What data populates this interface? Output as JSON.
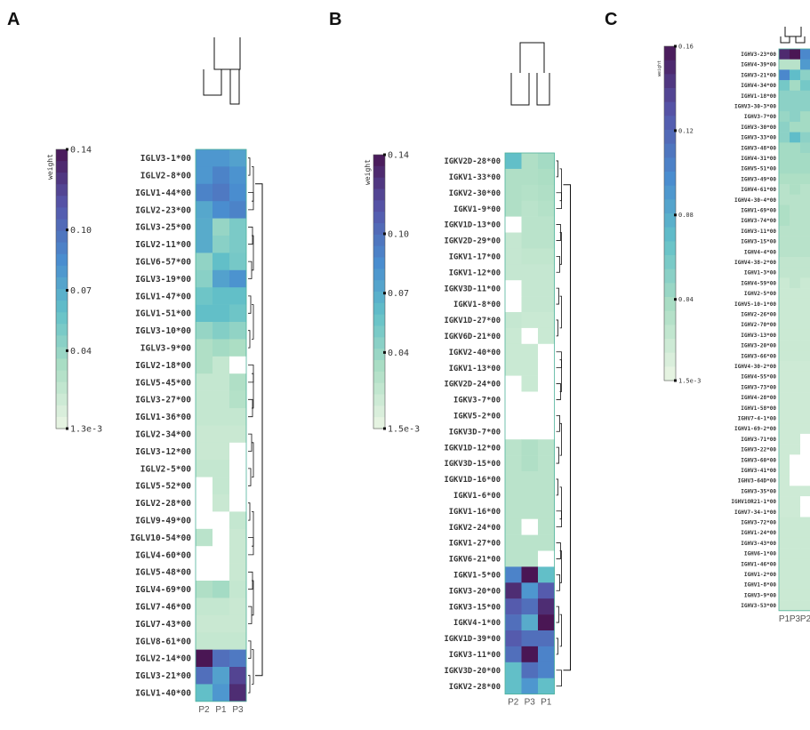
{
  "chart_data": [
    {
      "type": "heatmap",
      "panel_label": "A",
      "colorbar_title": "weight",
      "colorbar_ticks": [
        "0.14",
        "0.10",
        "0.07",
        "0.04",
        "1.3e-3"
      ],
      "colorbar_range": [
        0.0013,
        0.14
      ],
      "columns": [
        "P2",
        "P1",
        "P3"
      ],
      "rows": [
        "IGLV3-1*00",
        "IGLV2-8*00",
        "IGLV1-44*00",
        "IGLV2-23*00",
        "IGLV3-25*00",
        "IGLV2-11*00",
        "IGLV6-57*00",
        "IGLV3-19*00",
        "IGLV1-47*00",
        "IGLV1-51*00",
        "IGLV3-10*00",
        "IGLV3-9*00",
        "IGLV2-18*00",
        "IGLV5-45*00",
        "IGLV3-27*00",
        "IGLV1-36*00",
        "IGLV2-34*00",
        "IGLV3-12*00",
        "IGLV2-5*00",
        "IGLV5-52*00",
        "IGLV2-28*00",
        "IGLV9-49*00",
        "IGLV10-54*00",
        "IGLV4-60*00",
        "IGLV5-48*00",
        "IGLV4-69*00",
        "IGLV7-46*00",
        "IGLV7-43*00",
        "IGLV8-61*00",
        "IGLV2-14*00",
        "IGLV3-21*00",
        "IGLV1-40*00"
      ],
      "values": [
        [
          0.08,
          0.08,
          0.075
        ],
        [
          0.08,
          0.09,
          0.082
        ],
        [
          0.09,
          0.095,
          0.085
        ],
        [
          0.072,
          0.085,
          0.09
        ],
        [
          0.07,
          0.04,
          0.05
        ],
        [
          0.07,
          0.045,
          0.05
        ],
        [
          0.042,
          0.06,
          0.052
        ],
        [
          0.045,
          0.075,
          0.082
        ],
        [
          0.055,
          0.06,
          0.06
        ],
        [
          0.06,
          0.06,
          0.055
        ],
        [
          0.04,
          0.047,
          0.042
        ],
        [
          0.03,
          0.035,
          0.032
        ],
        [
          0.03,
          0.02,
          null
        ],
        [
          0.02,
          0.02,
          0.03
        ],
        [
          0.02,
          0.02,
          0.028
        ],
        [
          0.02,
          0.02,
          0.02
        ],
        [
          0.018,
          0.018,
          0.018
        ],
        [
          0.018,
          0.018,
          null
        ],
        [
          0.02,
          0.02,
          null
        ],
        [
          null,
          0.02,
          null
        ],
        [
          null,
          0.018,
          null
        ],
        [
          null,
          null,
          0.02
        ],
        [
          0.025,
          null,
          0.018
        ],
        [
          null,
          null,
          0.018
        ],
        [
          null,
          null,
          0.018
        ],
        [
          0.03,
          0.035,
          0.02
        ],
        [
          0.02,
          0.02,
          0.018
        ],
        [
          0.018,
          0.018,
          0.018
        ],
        [
          0.02,
          0.02,
          0.02
        ],
        [
          0.14,
          0.1,
          0.095
        ],
        [
          0.1,
          0.075,
          0.12
        ],
        [
          0.06,
          0.08,
          0.13
        ]
      ]
    },
    {
      "type": "heatmap",
      "panel_label": "B",
      "colorbar_title": "weight",
      "colorbar_ticks": [
        "0.14",
        "0.10",
        "0.07",
        "0.04",
        "1.5e-3"
      ],
      "colorbar_range": [
        0.0015,
        0.14
      ],
      "columns": [
        "P2",
        "P3",
        "P1"
      ],
      "rows": [
        "IGKV2D-28*00",
        "IGKV1-33*00",
        "IGKV2-30*00",
        "IGKV1-9*00",
        "IGKV1D-13*00",
        "IGKV2D-29*00",
        "IGKV1-17*00",
        "IGKV1-12*00",
        "IGKV3D-11*00",
        "IGKV1-8*00",
        "IGKV1D-27*00",
        "IGKV6D-21*00",
        "IGKV2-40*00",
        "IGKV1-13*00",
        "IGKV2D-24*00",
        "IGKV3-7*00",
        "IGKV5-2*00",
        "IGKV3D-7*00",
        "IGKV1D-12*00",
        "IGKV3D-15*00",
        "IGKV1D-16*00",
        "IGKV1-6*00",
        "IGKV1-16*00",
        "IGKV2-24*00",
        "IGKV1-27*00",
        "IGKV6-21*00",
        "IGKV1-5*00",
        "IGKV3-20*00",
        "IGKV3-15*00",
        "IGKV4-1*00",
        "IGKV1D-39*00",
        "IGKV3-11*00",
        "IGKV3D-20*00",
        "IGKV2-28*00"
      ],
      "values": [
        [
          0.06,
          0.03,
          0.035
        ],
        [
          0.03,
          0.03,
          0.032
        ],
        [
          0.03,
          0.028,
          0.03
        ],
        [
          0.03,
          0.025,
          0.028
        ],
        [
          null,
          0.025,
          0.025
        ],
        [
          0.02,
          0.025,
          0.025
        ],
        [
          0.02,
          0.022,
          0.022
        ],
        [
          0.02,
          0.02,
          0.02
        ],
        [
          null,
          0.02,
          0.02
        ],
        [
          null,
          0.02,
          0.02
        ],
        [
          0.02,
          0.018,
          0.018
        ],
        [
          0.018,
          null,
          0.018
        ],
        [
          0.018,
          0.018,
          null
        ],
        [
          0.018,
          0.018,
          null
        ],
        [
          null,
          0.018,
          null
        ],
        [
          null,
          null,
          null
        ],
        [
          null,
          null,
          null
        ],
        [
          null,
          null,
          null
        ],
        [
          0.025,
          0.03,
          0.025
        ],
        [
          0.025,
          0.03,
          0.025
        ],
        [
          0.025,
          0.025,
          0.025
        ],
        [
          0.025,
          0.025,
          0.025
        ],
        [
          0.025,
          0.025,
          0.025
        ],
        [
          0.025,
          null,
          0.025
        ],
        [
          0.025,
          0.025,
          0.025
        ],
        [
          0.025,
          0.025,
          null
        ],
        [
          0.09,
          0.14,
          0.06
        ],
        [
          0.13,
          0.08,
          0.11
        ],
        [
          0.11,
          0.1,
          0.13
        ],
        [
          0.1,
          0.07,
          0.14
        ],
        [
          0.11,
          0.1,
          0.1
        ],
        [
          0.1,
          0.14,
          0.09
        ],
        [
          0.06,
          0.1,
          0.09
        ],
        [
          0.06,
          0.08,
          0.06
        ]
      ]
    },
    {
      "type": "heatmap",
      "panel_label": "C",
      "colorbar_title": "weight",
      "colorbar_ticks": [
        "0.16",
        "0.12",
        "0.08",
        "0.04",
        "1.5e-3"
      ],
      "colorbar_range": [
        0.0015,
        0.16
      ],
      "columns": [
        "P1",
        "P3",
        "P2"
      ],
      "rows": [
        "IGHV3-23*00",
        "IGHV4-39*00",
        "IGHV3-21*00",
        "IGHV4-34*00",
        "IGHV1-18*00",
        "IGHV3-30-3*00",
        "IGHV3-7*00",
        "IGHV3-30*00",
        "IGHV3-33*00",
        "IGHV3-48*00",
        "IGHV4-31*00",
        "IGHV5-51*00",
        "IGHV3-49*00",
        "IGHV4-61*00",
        "IGHV4-30-4*00",
        "IGHV1-69*00",
        "IGHV3-74*00",
        "IGHV3-11*00",
        "IGHV3-15*00",
        "IGHV4-4*00",
        "IGHV4-38-2*00",
        "IGHV1-3*00",
        "IGHV4-59*00",
        "IGHV2-5*00",
        "IGHV5-10-1*00",
        "IGHV2-26*00",
        "IGHV2-70*00",
        "IGHV3-13*00",
        "IGHV3-20*00",
        "IGHV3-66*00",
        "IGHV4-30-2*00",
        "IGHV4-55*00",
        "IGHV3-73*00",
        "IGHV4-28*00",
        "IGHV1-58*00",
        "IGHV7-4-1*00",
        "IGHV1-69-2*00",
        "IGHV3-71*00",
        "IGHV3-22*00",
        "IGHV3-60*00",
        "IGHV3-41*00",
        "IGHV3-64D*00",
        "IGHV3-35*00",
        "IGHV1OR21-1*00",
        "IGHV7-34-1*00",
        "IGHV3-72*00",
        "IGHV1-24*00",
        "IGHV3-43*00",
        "IGHV6-1*00",
        "IGHV1-46*00",
        "IGHV1-2*00",
        "IGHV1-8*00",
        "IGHV3-9*00",
        "IGHV3-53*00"
      ],
      "values": [
        [
          0.15,
          0.16,
          0.1
        ],
        [
          0.03,
          0.03,
          0.09
        ],
        [
          0.1,
          0.07,
          0.05
        ],
        [
          0.06,
          0.04,
          0.06
        ],
        [
          0.05,
          0.05,
          0.05
        ],
        [
          0.05,
          0.05,
          0.05
        ],
        [
          0.045,
          0.05,
          0.04
        ],
        [
          0.05,
          0.04,
          0.04
        ],
        [
          0.05,
          0.07,
          0.05
        ],
        [
          0.04,
          0.04,
          0.045
        ],
        [
          0.04,
          0.04,
          0.04
        ],
        [
          0.04,
          0.04,
          0.04
        ],
        [
          0.035,
          0.035,
          0.035
        ],
        [
          0.03,
          0.035,
          0.03
        ],
        [
          0.03,
          0.03,
          0.03
        ],
        [
          0.035,
          0.03,
          0.03
        ],
        [
          0.035,
          0.03,
          0.03
        ],
        [
          0.03,
          0.03,
          0.03
        ],
        [
          0.03,
          0.03,
          0.03
        ],
        [
          0.03,
          0.03,
          0.03
        ],
        [
          0.025,
          0.025,
          0.025
        ],
        [
          0.025,
          0.025,
          0.025
        ],
        [
          0.02,
          0.025,
          0.02
        ],
        [
          0.02,
          0.02,
          0.02
        ],
        [
          0.02,
          0.02,
          0.02
        ],
        [
          0.02,
          0.02,
          0.02
        ],
        [
          0.02,
          0.02,
          0.02
        ],
        [
          0.02,
          0.02,
          0.02
        ],
        [
          0.02,
          0.02,
          0.02
        ],
        [
          0.02,
          0.02,
          0.02
        ],
        [
          0.018,
          0.018,
          0.018
        ],
        [
          0.018,
          0.018,
          0.018
        ],
        [
          0.018,
          0.018,
          0.018
        ],
        [
          0.018,
          0.018,
          0.018
        ],
        [
          0.018,
          0.018,
          0.018
        ],
        [
          0.018,
          0.018,
          0.018
        ],
        [
          0.018,
          0.018,
          0.018
        ],
        [
          0.018,
          0.018,
          null
        ],
        [
          0.018,
          0.018,
          null
        ],
        [
          0.018,
          null,
          null
        ],
        [
          0.018,
          null,
          null
        ],
        [
          0.018,
          null,
          null
        ],
        [
          0.018,
          0.018,
          0.018
        ],
        [
          0.018,
          0.018,
          null
        ],
        [
          0.018,
          0.018,
          null
        ],
        [
          0.02,
          0.02,
          0.02
        ],
        [
          0.02,
          0.02,
          0.02
        ],
        [
          0.02,
          0.02,
          0.02
        ],
        [
          0.02,
          0.02,
          0.02
        ],
        [
          0.02,
          0.02,
          0.02
        ],
        [
          0.02,
          0.02,
          0.02
        ],
        [
          0.02,
          0.02,
          0.02
        ],
        [
          0.02,
          0.02,
          0.02
        ],
        [
          0.02,
          0.02,
          0.02
        ]
      ]
    }
  ]
}
